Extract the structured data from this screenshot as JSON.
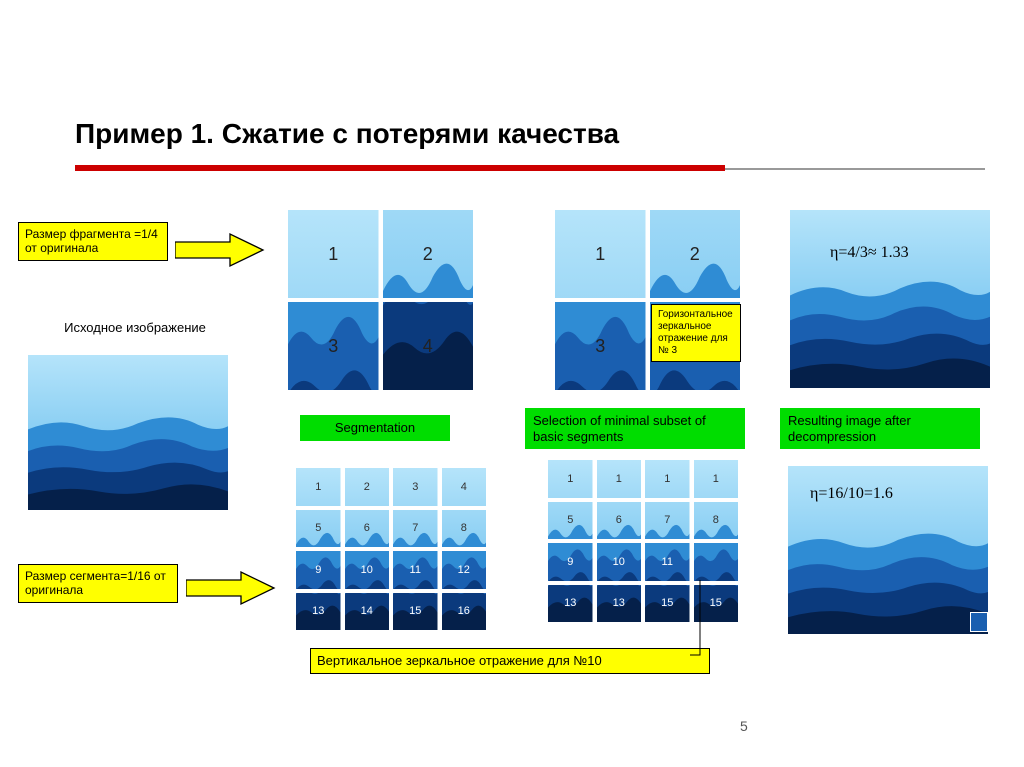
{
  "title": "Пример 1.  Сжатие с потерями качества",
  "labels": {
    "fragment_size": "Размер фрагмента =1/4 от оригинала",
    "source_image": "Исходное изображение",
    "segment_size": "Размер сегмента=1/16 от оригинала",
    "mirror_h": "Горизонтальное зеркальное отражение для № 3",
    "mirror_v": "Вертикальное зеркальное отражение для №10"
  },
  "green": {
    "segmentation": "Segmentation",
    "selection": "Selection of minimal subset of basic segments",
    "resulting": "Resulting image after decompression"
  },
  "formulas": {
    "f1": "η=4/3≈ 1.33",
    "f2": "η=16/10=1.6"
  },
  "grid2_a": [
    "1",
    "2",
    "3",
    "4"
  ],
  "grid2_b": [
    "1",
    "2",
    "3",
    ""
  ],
  "grid4_a": [
    "1",
    "2",
    "3",
    "4",
    "5",
    "6",
    "7",
    "8",
    "9",
    "10",
    "11",
    "12",
    "13",
    "14",
    "15",
    "16"
  ],
  "grid4_b": [
    "1",
    "1",
    "1",
    "1",
    "5",
    "6",
    "7",
    "8",
    "9",
    "10",
    "11",
    "",
    "13",
    "13",
    "15",
    "15"
  ],
  "colors": {
    "sky_top": "#b5e4fa",
    "sky_mid": "#5db8ec",
    "ridge1": "#2f8cd4",
    "ridge2": "#1a5fb0",
    "ridge3": "#0b3a7d",
    "ridge4": "#05204a"
  },
  "page_number": "5"
}
